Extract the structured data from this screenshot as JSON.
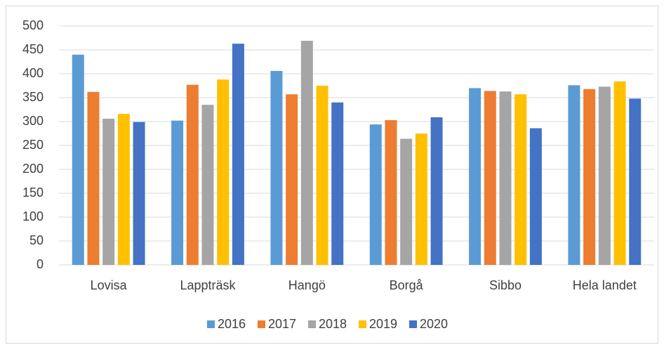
{
  "chart_data": {
    "type": "bar",
    "categories": [
      "Lovisa",
      "Lappträsk",
      "Hangö",
      "Borgå",
      "Sibbo",
      "Hela landet"
    ],
    "series": [
      {
        "name": "2016",
        "color": "#5b9bd5",
        "values": [
          440,
          302,
          406,
          294,
          370,
          376
        ]
      },
      {
        "name": "2017",
        "color": "#ed7d31",
        "values": [
          362,
          377,
          357,
          303,
          364,
          368
        ]
      },
      {
        "name": "2018",
        "color": "#a5a5a5",
        "values": [
          306,
          335,
          469,
          264,
          363,
          373
        ]
      },
      {
        "name": "2019",
        "color": "#ffc000",
        "values": [
          316,
          388,
          375,
          275,
          357,
          384
        ]
      },
      {
        "name": "2020",
        "color": "#4472c4",
        "values": [
          299,
          463,
          340,
          309,
          286,
          348
        ]
      }
    ],
    "ylim": [
      0,
      500
    ],
    "yticks": [
      0,
      50,
      100,
      150,
      200,
      250,
      300,
      350,
      400,
      450,
      500
    ],
    "grid": true,
    "legend": "bottom"
  }
}
